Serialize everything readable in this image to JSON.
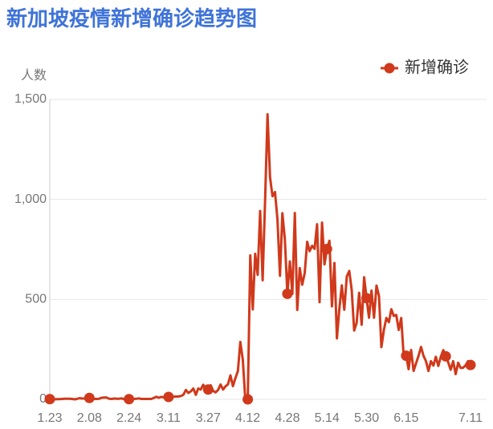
{
  "chart_data": {
    "type": "line",
    "title": "新加坡疫情新增确诊趋势图",
    "y_label": "人数",
    "categories": [
      "1.23",
      null,
      null,
      null,
      null,
      null,
      null,
      null,
      null,
      null,
      null,
      null,
      null,
      null,
      null,
      null,
      "2.08",
      null,
      null,
      null,
      null,
      null,
      null,
      null,
      null,
      null,
      null,
      null,
      null,
      null,
      null,
      null,
      "2.24",
      null,
      null,
      null,
      null,
      null,
      null,
      null,
      null,
      null,
      null,
      null,
      null,
      null,
      null,
      null,
      "3.11",
      null,
      null,
      null,
      null,
      null,
      null,
      null,
      null,
      null,
      null,
      null,
      null,
      null,
      null,
      null,
      "3.27",
      null,
      null,
      null,
      null,
      null,
      null,
      null,
      null,
      null,
      null,
      null,
      null,
      null,
      null,
      null,
      "4.12",
      null,
      null,
      null,
      null,
      null,
      null,
      null,
      null,
      null,
      null,
      null,
      null,
      null,
      null,
      null,
      "4.28",
      null,
      null,
      null,
      null,
      null,
      null,
      null,
      null,
      null,
      null,
      null,
      null,
      null,
      null,
      null,
      "5.14",
      null,
      null,
      null,
      null,
      null,
      null,
      null,
      null,
      null,
      null,
      null,
      null,
      null,
      null,
      null,
      "5.30",
      null,
      null,
      null,
      null,
      null,
      null,
      null,
      null,
      null,
      null,
      null,
      null,
      null,
      null,
      null,
      "6.15",
      null,
      null,
      null,
      null,
      null,
      null,
      null,
      null,
      null,
      null,
      null,
      null,
      null,
      null,
      null,
      null,
      null,
      null,
      null,
      null,
      null,
      null,
      null,
      null,
      null,
      "7.11"
    ],
    "series": [
      {
        "name": "新增确诊",
        "color": "#d0391b",
        "values": [
          1,
          2,
          0,
          1,
          1,
          2,
          3,
          3,
          3,
          2,
          0,
          2,
          6,
          4,
          4,
          3,
          7,
          7,
          2,
          2,
          3,
          8,
          9,
          9,
          3,
          2,
          4,
          3,
          3,
          5,
          1,
          3,
          1,
          0,
          2,
          3,
          5,
          2,
          2,
          2,
          2,
          2,
          7,
          13,
          8,
          12,
          10,
          6,
          12,
          9,
          13,
          14,
          14,
          17,
          23,
          47,
          32,
          40,
          54,
          23,
          54,
          49,
          73,
          52,
          49,
          70,
          42,
          35,
          47,
          74,
          49,
          65,
          75,
          120,
          66,
          106,
          142,
          287,
          198,
          0,
          0,
          720,
          450,
          728,
          623,
          942,
          596,
          1000,
          1426,
          1111,
          1016,
          1037,
          897,
          618,
          931,
          799,
          528,
          690,
          528,
          932,
          447,
          657,
          573,
          632,
          788,
          741,
          768,
          753,
          876,
          486,
          884,
          675,
          752,
          793,
          465,
          682,
          305,
          451,
          570,
          448,
          614,
          642,
          548,
          344,
          383,
          533,
          373,
          611,
          506,
          408,
          544,
          408,
          569,
          517,
          261,
          347,
          407,
          386,
          451,
          417,
          422,
          347,
          407,
          214,
          218,
          151,
          247,
          142,
          181,
          218,
          262,
          218,
          191,
          142,
          191,
          169,
          213,
          167,
          213,
          246,
          215,
          184,
          148,
          191,
          126,
          183,
          157,
          158,
          170,
          191,
          172
        ]
      }
    ],
    "ylim": [
      0,
      1500
    ],
    "yticks": [
      0,
      500,
      {
        "value": 1000,
        "label": "1,000"
      },
      {
        "value": 1500,
        "label": "1,500"
      }
    ],
    "grid": true
  }
}
